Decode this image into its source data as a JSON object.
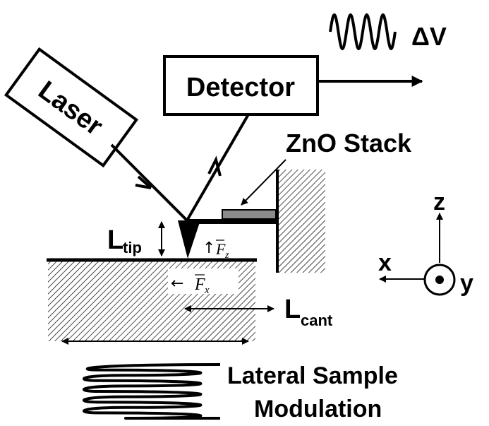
{
  "labels": {
    "laser": "Laser",
    "detector": "Detector",
    "delta_v": "ΔV",
    "zno_stack": "ZnO Stack",
    "l_tip_main": "L",
    "l_tip_sub": "tip",
    "l_cant_main": "L",
    "l_cant_sub": "cant",
    "force_z_base": "F",
    "force_z_sub": "z",
    "force_x_base": "F",
    "force_x_sub": "x",
    "axis_z": "z",
    "axis_x": "x",
    "axis_y": "y",
    "modulation_line1": "Lateral Sample",
    "modulation_line2": "Modulation"
  },
  "colors": {
    "ink": "#000000",
    "zno_fill": "#8c8c8c",
    "background": "#ffffff"
  },
  "icons": {
    "up_arrow": "↑",
    "left_arrow": "←"
  }
}
